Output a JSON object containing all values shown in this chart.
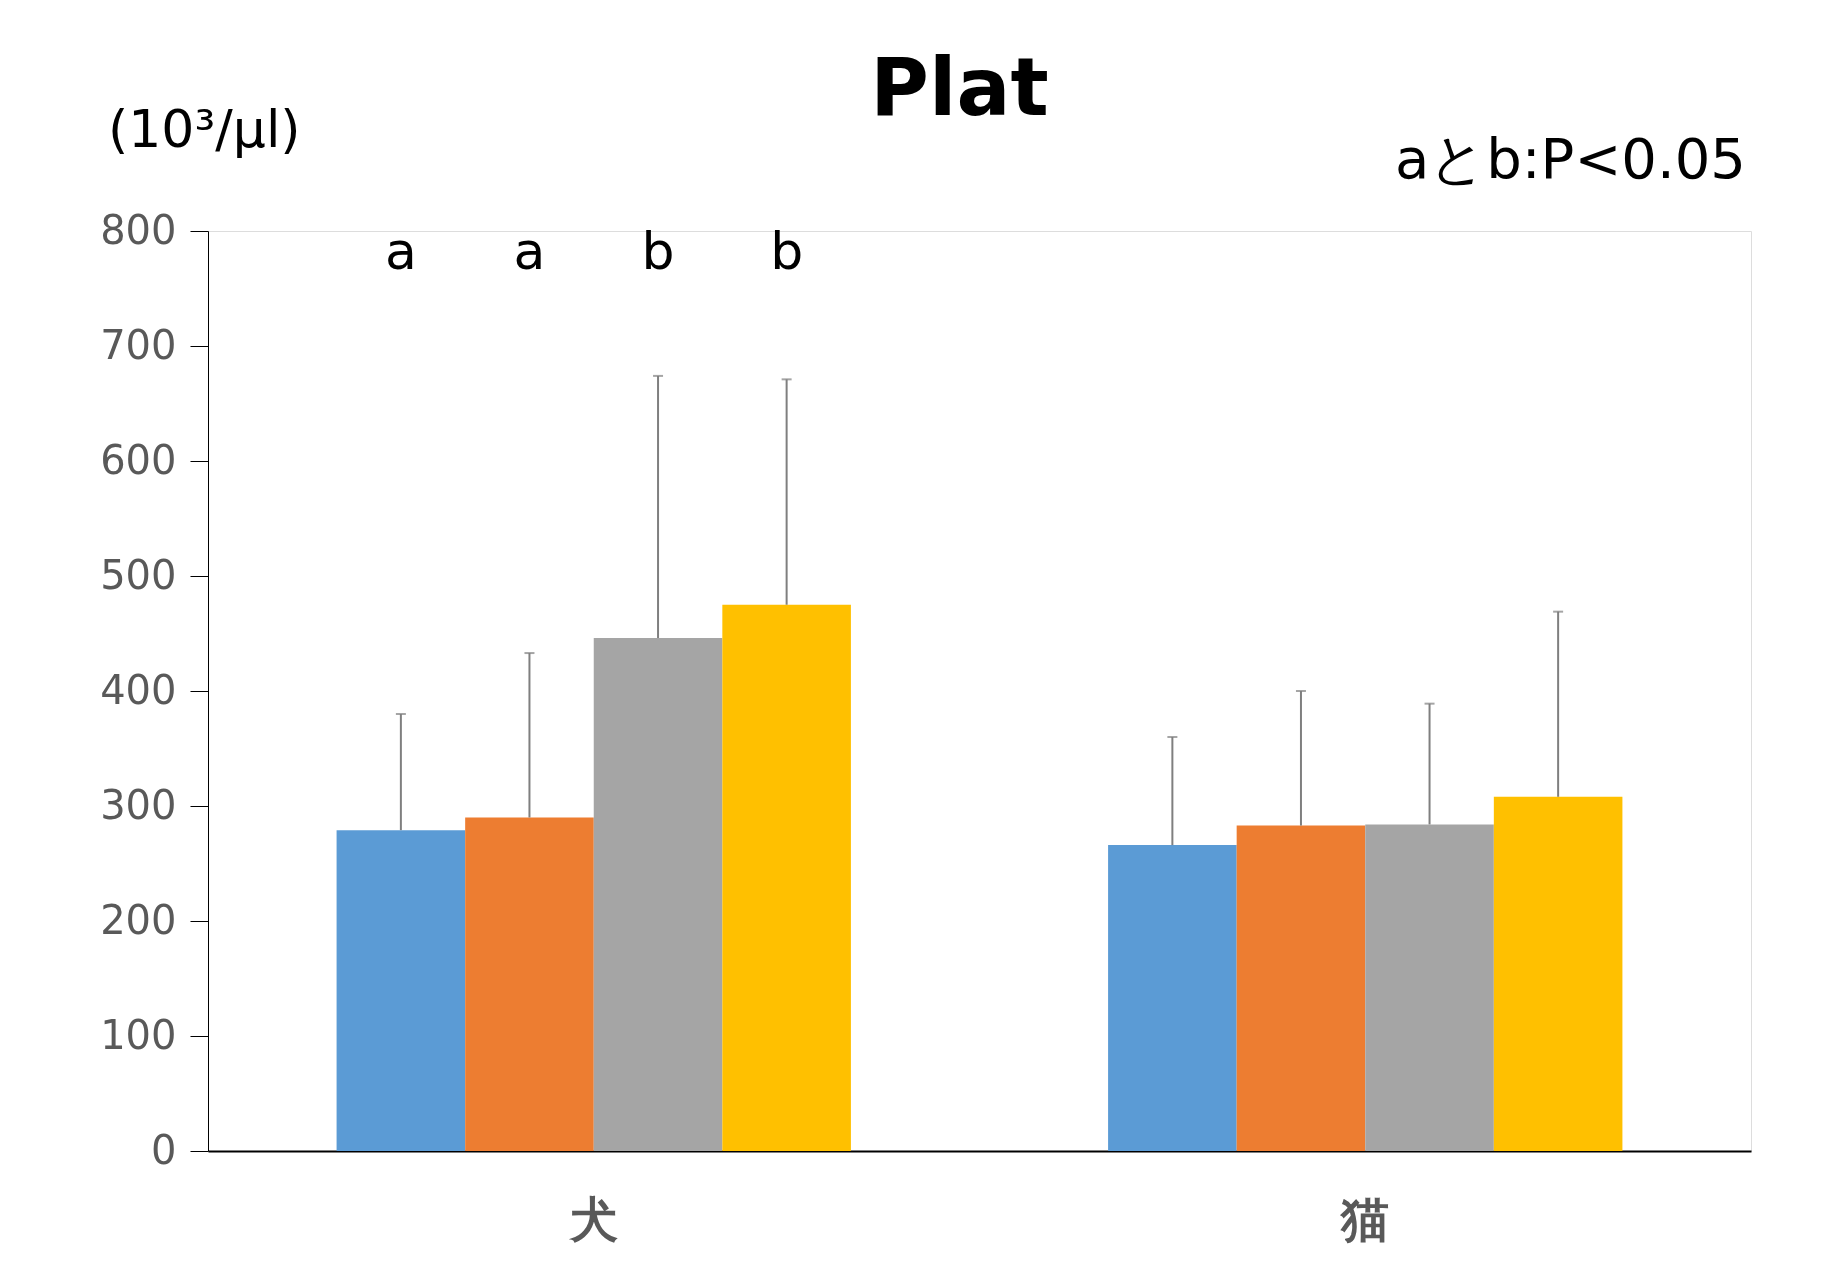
{
  "chart_data": {
    "type": "bar",
    "title": "Plat",
    "ylabel": "(10³/μl)",
    "categories": [
      "犬",
      "猫"
    ],
    "series": [
      {
        "color": "#5b9bd5",
        "values": [
          279,
          266
        ],
        "errors": [
          [
            279,
            380
          ],
          [
            266,
            360
          ]
        ]
      },
      {
        "color": "#ed7d31",
        "values": [
          290,
          283
        ],
        "errors": [
          [
            290,
            433
          ],
          [
            283,
            400
          ]
        ]
      },
      {
        "color": "#a5a5a5",
        "values": [
          446,
          284
        ],
        "errors": [
          [
            446,
            674
          ],
          [
            284,
            389
          ]
        ]
      },
      {
        "color": "#ffc000",
        "values": [
          475,
          308
        ],
        "errors": [
          [
            475,
            671
          ],
          [
            308,
            469
          ]
        ]
      }
    ],
    "ylim": [
      0,
      800
    ],
    "yticks": [
      0,
      100,
      200,
      300,
      400,
      500,
      600,
      700,
      800
    ],
    "grid": false,
    "legend": false,
    "annotations": [
      "a",
      "a",
      "b",
      "b",
      "aとb:P<0.05"
    ]
  }
}
